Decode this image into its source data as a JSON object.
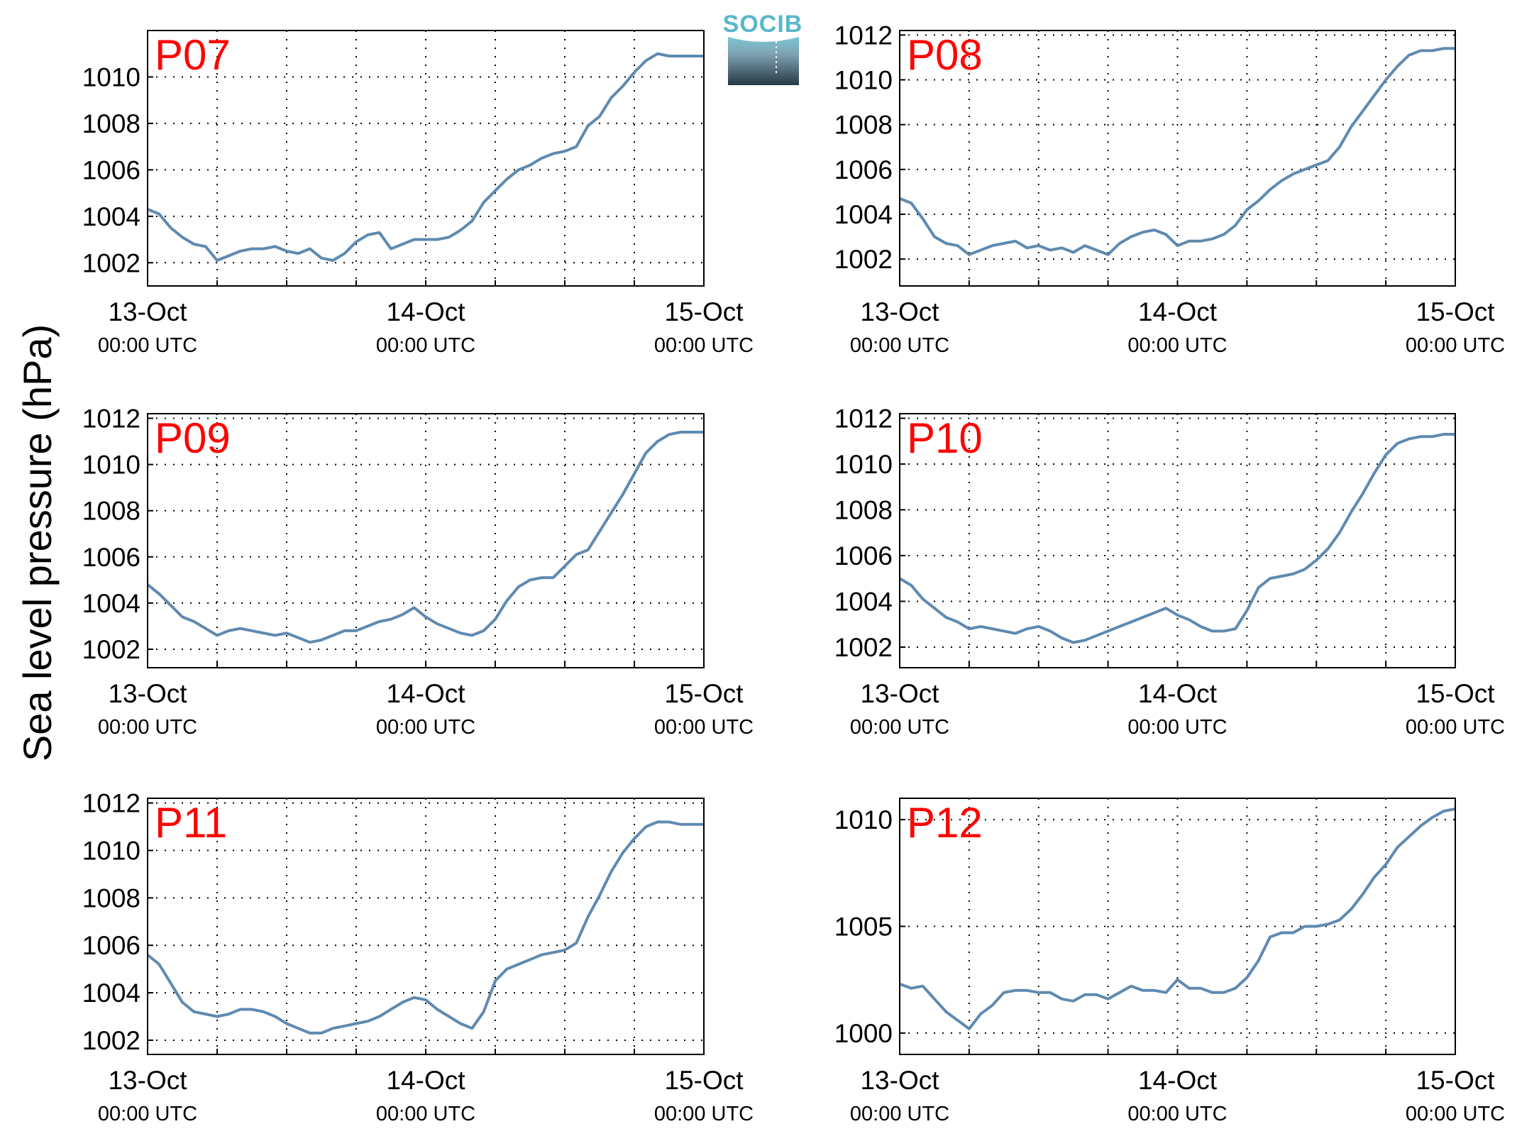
{
  "figure": {
    "ylabel": "Sea level pressure (hPa)",
    "logo_text": "SOCIB",
    "line_color": "#5f8ab0",
    "label_color": "#ff0000"
  },
  "chart_data": [
    {
      "type": "line",
      "label": "P07",
      "x_ticks": [
        {
          "top": "13-Oct",
          "bottom": "00:00 UTC"
        },
        {
          "top": "14-Oct",
          "bottom": "00:00 UTC"
        },
        {
          "top": "15-Oct",
          "bottom": "00:00 UTC"
        }
      ],
      "xlim": [
        0,
        48
      ],
      "ylim": [
        1001,
        1012
      ],
      "yticks": [
        1002,
        1004,
        1006,
        1008,
        1010
      ],
      "grid": true,
      "x": [
        0,
        1,
        2,
        3,
        4,
        5,
        6,
        7,
        8,
        9,
        10,
        11,
        12,
        13,
        14,
        15,
        16,
        17,
        18,
        19,
        20,
        21,
        22,
        23,
        24,
        25,
        26,
        27,
        28,
        29,
        30,
        31,
        32,
        33,
        34,
        35,
        36,
        37,
        38,
        39,
        40,
        41,
        42,
        43,
        44,
        45,
        46,
        47,
        48
      ],
      "y": [
        1004.3,
        1004.1,
        1003.5,
        1003.1,
        1002.8,
        1002.7,
        1002.1,
        1002.3,
        1002.5,
        1002.6,
        1002.6,
        1002.7,
        1002.5,
        1002.4,
        1002.6,
        1002.2,
        1002.1,
        1002.4,
        1002.9,
        1003.2,
        1003.3,
        1002.6,
        1002.8,
        1003,
        1003,
        1003,
        1003.1,
        1003.4,
        1003.8,
        1004.6,
        1005.1,
        1005.6,
        1006,
        1006.2,
        1006.5,
        1006.7,
        1006.8,
        1007,
        1007.9,
        1008.3,
        1009.1,
        1009.6,
        1010.2,
        1010.7,
        1011,
        1010.9,
        1010.9,
        1010.9,
        1010.9
      ]
    },
    {
      "type": "line",
      "label": "P08",
      "x_ticks": [
        {
          "top": "13-Oct",
          "bottom": "00:00 UTC"
        },
        {
          "top": "14-Oct",
          "bottom": "00:00 UTC"
        },
        {
          "top": "15-Oct",
          "bottom": "00:00 UTC"
        }
      ],
      "xlim": [
        0,
        48
      ],
      "ylim": [
        1000.8,
        1012.2
      ],
      "yticks": [
        1002,
        1004,
        1006,
        1008,
        1010,
        1012
      ],
      "grid": true,
      "x": [
        0,
        1,
        2,
        3,
        4,
        5,
        6,
        7,
        8,
        9,
        10,
        11,
        12,
        13,
        14,
        15,
        16,
        17,
        18,
        19,
        20,
        21,
        22,
        23,
        24,
        25,
        26,
        27,
        28,
        29,
        30,
        31,
        32,
        33,
        34,
        35,
        36,
        37,
        38,
        39,
        40,
        41,
        42,
        43,
        44,
        45,
        46,
        47,
        48
      ],
      "y": [
        1004.7,
        1004.5,
        1003.8,
        1003,
        1002.7,
        1002.6,
        1002.2,
        1002.4,
        1002.6,
        1002.7,
        1002.8,
        1002.5,
        1002.6,
        1002.4,
        1002.5,
        1002.3,
        1002.6,
        1002.4,
        1002.2,
        1002.7,
        1003,
        1003.2,
        1003.3,
        1003.1,
        1002.6,
        1002.8,
        1002.8,
        1002.9,
        1003.1,
        1003.5,
        1004.2,
        1004.6,
        1005.1,
        1005.5,
        1005.8,
        1006,
        1006.2,
        1006.4,
        1007,
        1007.9,
        1008.6,
        1009.3,
        1010,
        1010.6,
        1011.1,
        1011.3,
        1011.3,
        1011.4,
        1011.4
      ]
    },
    {
      "type": "line",
      "label": "P09",
      "x_ticks": [
        {
          "top": "13-Oct",
          "bottom": "00:00 UTC"
        },
        {
          "top": "14-Oct",
          "bottom": "00:00 UTC"
        },
        {
          "top": "15-Oct",
          "bottom": "00:00 UTC"
        }
      ],
      "xlim": [
        0,
        48
      ],
      "ylim": [
        1001.2,
        1012.2
      ],
      "yticks": [
        1002,
        1004,
        1006,
        1008,
        1010,
        1012
      ],
      "grid": true,
      "x": [
        0,
        1,
        2,
        3,
        4,
        5,
        6,
        7,
        8,
        9,
        10,
        11,
        12,
        13,
        14,
        15,
        16,
        17,
        18,
        19,
        20,
        21,
        22,
        23,
        24,
        25,
        26,
        27,
        28,
        29,
        30,
        31,
        32,
        33,
        34,
        35,
        36,
        37,
        38,
        39,
        40,
        41,
        42,
        43,
        44,
        45,
        46,
        47,
        48
      ],
      "y": [
        1004.8,
        1004.4,
        1003.9,
        1003.4,
        1003.2,
        1002.9,
        1002.6,
        1002.8,
        1002.9,
        1002.8,
        1002.7,
        1002.6,
        1002.7,
        1002.5,
        1002.3,
        1002.4,
        1002.6,
        1002.8,
        1002.8,
        1003,
        1003.2,
        1003.3,
        1003.5,
        1003.8,
        1003.4,
        1003.1,
        1002.9,
        1002.7,
        1002.6,
        1002.8,
        1003.3,
        1004.1,
        1004.7,
        1005,
        1005.1,
        1005.1,
        1005.6,
        1006.1,
        1006.3,
        1007.1,
        1007.9,
        1008.7,
        1009.6,
        1010.5,
        1011,
        1011.3,
        1011.4,
        1011.4,
        1011.4
      ]
    },
    {
      "type": "line",
      "label": "P10",
      "x_ticks": [
        {
          "top": "13-Oct",
          "bottom": "00:00 UTC"
        },
        {
          "top": "14-Oct",
          "bottom": "00:00 UTC"
        },
        {
          "top": "15-Oct",
          "bottom": "00:00 UTC"
        }
      ],
      "xlim": [
        0,
        48
      ],
      "ylim": [
        1001.1,
        1012.2
      ],
      "yticks": [
        1002,
        1004,
        1006,
        1008,
        1010,
        1012
      ],
      "grid": true,
      "x": [
        0,
        1,
        2,
        3,
        4,
        5,
        6,
        7,
        8,
        9,
        10,
        11,
        12,
        13,
        14,
        15,
        16,
        17,
        18,
        19,
        20,
        21,
        22,
        23,
        24,
        25,
        26,
        27,
        28,
        29,
        30,
        31,
        32,
        33,
        34,
        35,
        36,
        37,
        38,
        39,
        40,
        41,
        42,
        43,
        44,
        45,
        46,
        47,
        48
      ],
      "y": [
        1005,
        1004.7,
        1004.1,
        1003.7,
        1003.3,
        1003.1,
        1002.8,
        1002.9,
        1002.8,
        1002.7,
        1002.6,
        1002.8,
        1002.9,
        1002.7,
        1002.4,
        1002.2,
        1002.3,
        1002.5,
        1002.7,
        1002.9,
        1003.1,
        1003.3,
        1003.5,
        1003.7,
        1003.4,
        1003.2,
        1002.9,
        1002.7,
        1002.7,
        1002.8,
        1003.6,
        1004.6,
        1005,
        1005.1,
        1005.2,
        1005.4,
        1005.8,
        1006.3,
        1007,
        1007.9,
        1008.7,
        1009.6,
        1010.4,
        1010.9,
        1011.1,
        1011.2,
        1011.2,
        1011.3,
        1011.3
      ]
    },
    {
      "type": "line",
      "label": "P11",
      "x_ticks": [
        {
          "top": "13-Oct",
          "bottom": "00:00 UTC"
        },
        {
          "top": "14-Oct",
          "bottom": "00:00 UTC"
        },
        {
          "top": "15-Oct",
          "bottom": "00:00 UTC"
        }
      ],
      "xlim": [
        0,
        48
      ],
      "ylim": [
        1001.4,
        1012.2
      ],
      "yticks": [
        1002,
        1004,
        1006,
        1008,
        1010,
        1012
      ],
      "grid": true,
      "x": [
        0,
        1,
        2,
        3,
        4,
        5,
        6,
        7,
        8,
        9,
        10,
        11,
        12,
        13,
        14,
        15,
        16,
        17,
        18,
        19,
        20,
        21,
        22,
        23,
        24,
        25,
        26,
        27,
        28,
        29,
        30,
        31,
        32,
        33,
        34,
        35,
        36,
        37,
        38,
        39,
        40,
        41,
        42,
        43,
        44,
        45,
        46,
        47,
        48
      ],
      "y": [
        1005.6,
        1005.2,
        1004.4,
        1003.6,
        1003.2,
        1003.1,
        1003,
        1003.1,
        1003.3,
        1003.3,
        1003.2,
        1003,
        1002.7,
        1002.5,
        1002.3,
        1002.3,
        1002.5,
        1002.6,
        1002.7,
        1002.8,
        1003,
        1003.3,
        1003.6,
        1003.8,
        1003.7,
        1003.3,
        1003,
        1002.7,
        1002.5,
        1003.2,
        1004.5,
        1005,
        1005.2,
        1005.4,
        1005.6,
        1005.7,
        1005.8,
        1006.1,
        1007.2,
        1008.1,
        1009.1,
        1009.9,
        1010.5,
        1011,
        1011.2,
        1011.2,
        1011.1,
        1011.1,
        1011.1
      ]
    },
    {
      "type": "line",
      "label": "P12",
      "x_ticks": [
        {
          "top": "13-Oct",
          "bottom": "00:00 UTC"
        },
        {
          "top": "14-Oct",
          "bottom": "00:00 UTC"
        },
        {
          "top": "15-Oct",
          "bottom": "00:00 UTC"
        }
      ],
      "xlim": [
        0,
        48
      ],
      "ylim": [
        999,
        1011
      ],
      "yticks": [
        1000,
        1005,
        1010
      ],
      "grid": true,
      "x": [
        0,
        1,
        2,
        3,
        4,
        5,
        6,
        7,
        8,
        9,
        10,
        11,
        12,
        13,
        14,
        15,
        16,
        17,
        18,
        19,
        20,
        21,
        22,
        23,
        24,
        25,
        26,
        27,
        28,
        29,
        30,
        31,
        32,
        33,
        34,
        35,
        36,
        37,
        38,
        39,
        40,
        41,
        42,
        43,
        44,
        45,
        46,
        47,
        48
      ],
      "y": [
        1002.3,
        1002.1,
        1002.2,
        1001.6,
        1001,
        1000.6,
        1000.2,
        1000.9,
        1001.3,
        1001.9,
        1002,
        1002,
        1001.9,
        1001.9,
        1001.6,
        1001.5,
        1001.8,
        1001.8,
        1001.6,
        1001.9,
        1002.2,
        1002,
        1002,
        1001.9,
        1002.5,
        1002.1,
        1002.1,
        1001.9,
        1001.9,
        1002.1,
        1002.6,
        1003.4,
        1004.5,
        1004.7,
        1004.7,
        1005,
        1005,
        1005.1,
        1005.3,
        1005.8,
        1006.5,
        1007.3,
        1007.9,
        1008.7,
        1009.2,
        1009.7,
        1010.1,
        1010.4,
        1010.5
      ]
    }
  ]
}
